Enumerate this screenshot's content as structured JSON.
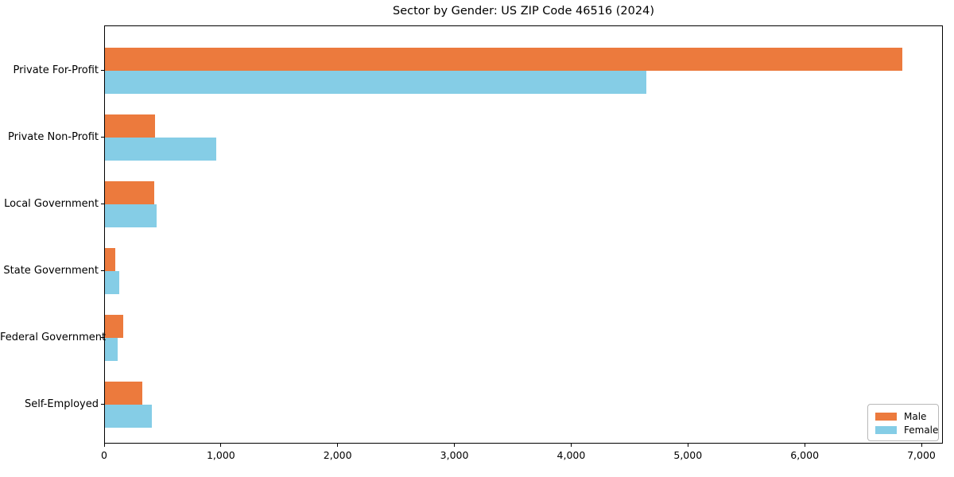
{
  "chart_data": {
    "type": "bar",
    "orientation": "horizontal",
    "title": "Sector by Gender: US ZIP Code 46516 (2024)",
    "categories": [
      "Private For-Profit",
      "Private Non-Profit",
      "Local Government",
      "State Government",
      "Federal Government",
      "Self-Employed"
    ],
    "series": [
      {
        "name": "Male",
        "color": "#ec7a3d",
        "values": [
          6830,
          430,
          425,
          90,
          155,
          320
        ]
      },
      {
        "name": "Female",
        "color": "#85cde6",
        "values": [
          4640,
          950,
          445,
          120,
          110,
          400
        ]
      }
    ],
    "xlabel": "",
    "ylabel": "",
    "xlim": [
      0,
      7180
    ],
    "x_ticks": [
      0,
      1000,
      2000,
      3000,
      4000,
      5000,
      6000,
      7000
    ],
    "x_tick_labels": [
      "0",
      "1,000",
      "2,000",
      "3,000",
      "4,000",
      "5,000",
      "6,000",
      "7,000"
    ],
    "grid": false,
    "legend": {
      "position": "lower right",
      "entries": [
        "Male",
        "Female"
      ]
    },
    "axis_color": "#000000",
    "background_color": "#ffffff"
  }
}
